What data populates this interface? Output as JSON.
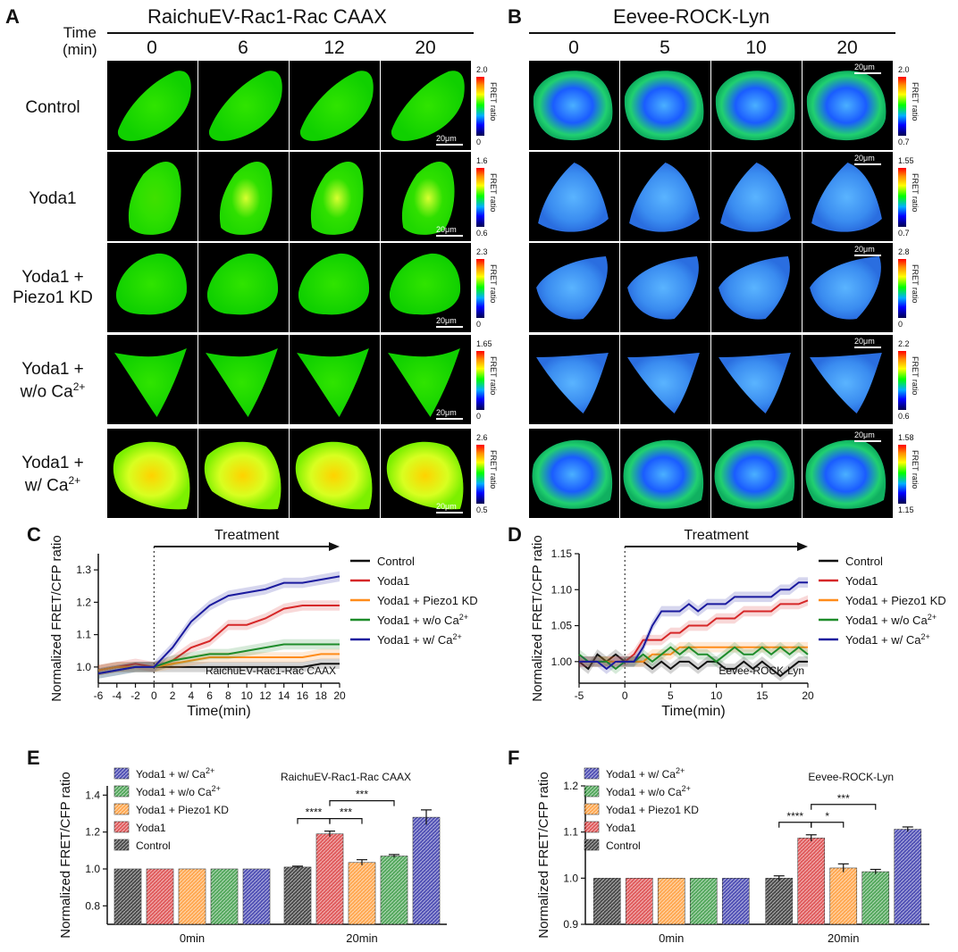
{
  "panel_labels": {
    "a": "A",
    "b": "B",
    "c": "C",
    "d": "D",
    "e": "E",
    "f": "F"
  },
  "panel_a": {
    "title": "RaichuEV-Rac1-Rac CAAX",
    "time_label_1": "Time",
    "time_label_2": "(min)",
    "times": [
      "0",
      "6",
      "12",
      "20"
    ],
    "rows": [
      {
        "label_1": "Control",
        "label_2": "",
        "cmax": "2.0",
        "cmin": "0",
        "hue": "green"
      },
      {
        "label_1": "Yoda1",
        "label_2": "",
        "cmax": "1.6",
        "cmin": "0.6",
        "hue": "green"
      },
      {
        "label_1": "Yoda1 +",
        "label_2": "Piezo1 KD",
        "cmax": "2.3",
        "cmin": "0",
        "hue": "green"
      },
      {
        "label_1": "Yoda1 +",
        "label_2": "w/o Ca",
        "cmax": "1.65",
        "cmin": "0",
        "hue": "green"
      },
      {
        "label_1": "Yoda1 +",
        "label_2": "w/ Ca",
        "cmax": "2.6",
        "cmin": "0.5",
        "hue": "yellow"
      }
    ],
    "sup": "2+",
    "scale": "20μm",
    "colorbar_label": "FRET ratio"
  },
  "panel_b": {
    "title": "Eevee-ROCK-Lyn",
    "times": [
      "0",
      "5",
      "10",
      "20"
    ],
    "rows": [
      {
        "cmax": "2.0",
        "cmin": "0.7"
      },
      {
        "cmax": "1.55",
        "cmin": "0.7"
      },
      {
        "cmax": "2.8",
        "cmin": "0"
      },
      {
        "cmax": "2.2",
        "cmin": "0.6"
      },
      {
        "cmax": "1.58",
        "cmin": "1.15"
      }
    ],
    "scale": "20μm",
    "colorbar_label": "FRET ratio"
  },
  "colors": {
    "control": "#111111",
    "yoda1": "#d62728",
    "piezo": "#ff8c1a",
    "woca": "#1e8c2a",
    "wca": "#1a1a9e"
  },
  "legend_line": [
    "Control",
    "Yoda1",
    "Yoda1 + Piezo1 KD",
    "Yoda1 + w/o Ca",
    "Yoda1 + w/ Ca"
  ],
  "legend_bar": [
    "Yoda1 + w/ Ca",
    "Yoda1 + w/o Ca",
    "Yoda1 + Piezo1 KD",
    "Yoda1",
    "Control"
  ],
  "chart_data": [
    {
      "id": "C",
      "type": "line",
      "ylabel": "Normalized FRET/CFP ratio",
      "xlabel": "Time(min)",
      "annotation": "Treatment",
      "inset": "RaichuEV-Rac1-Rac CAAX",
      "xlim": [
        -6,
        20
      ],
      "ylim": [
        0.95,
        1.35
      ],
      "xticks": [
        -6,
        -4,
        -2,
        0,
        2,
        4,
        6,
        8,
        10,
        12,
        14,
        16,
        18,
        20
      ],
      "yticks": [
        1.0,
        1.1,
        1.2,
        1.3
      ],
      "series": [
        {
          "name": "Control",
          "key": "control",
          "x": [
            -6,
            -4,
            -2,
            0,
            2,
            4,
            6,
            8,
            10,
            12,
            14,
            16,
            18,
            20
          ],
          "y": [
            0.99,
            1.0,
            1.0,
            1.0,
            1.0,
            1.0,
            1.0,
            1.0,
            1.0,
            1.0,
            1.0,
            1.0,
            1.01,
            1.01
          ]
        },
        {
          "name": "Yoda1",
          "key": "yoda1",
          "x": [
            -6,
            -4,
            -2,
            0,
            2,
            4,
            6,
            8,
            10,
            12,
            14,
            16,
            18,
            20
          ],
          "y": [
            0.99,
            1.0,
            1.01,
            1.0,
            1.02,
            1.06,
            1.08,
            1.13,
            1.13,
            1.15,
            1.18,
            1.19,
            1.19,
            1.19
          ]
        },
        {
          "name": "Yoda1 + Piezo1 KD",
          "key": "piezo",
          "x": [
            -6,
            -4,
            -2,
            0,
            2,
            4,
            6,
            8,
            10,
            12,
            14,
            16,
            18,
            20
          ],
          "y": [
            0.99,
            1.0,
            1.0,
            1.0,
            1.01,
            1.02,
            1.03,
            1.03,
            1.03,
            1.03,
            1.03,
            1.03,
            1.04,
            1.04
          ]
        },
        {
          "name": "Yoda1 + w/o Ca",
          "key": "woca",
          "x": [
            -6,
            -4,
            -2,
            0,
            2,
            4,
            6,
            8,
            10,
            12,
            14,
            16,
            18,
            20
          ],
          "y": [
            0.98,
            0.99,
            1.0,
            1.0,
            1.02,
            1.03,
            1.04,
            1.04,
            1.05,
            1.06,
            1.07,
            1.07,
            1.07,
            1.07
          ]
        },
        {
          "name": "Yoda1 + w/ Ca",
          "key": "wca",
          "x": [
            -6,
            -4,
            -2,
            0,
            2,
            4,
            6,
            8,
            10,
            12,
            14,
            16,
            18,
            20
          ],
          "y": [
            0.98,
            0.99,
            1.0,
            1.0,
            1.06,
            1.14,
            1.19,
            1.22,
            1.23,
            1.24,
            1.26,
            1.26,
            1.27,
            1.28
          ]
        }
      ]
    },
    {
      "id": "D",
      "type": "line",
      "ylabel": "Normalized FRET/CFP ratio",
      "xlabel": "Time(min)",
      "annotation": "Treatment",
      "inset": "Eevee-ROCK-Lyn",
      "xlim": [
        -5,
        20
      ],
      "ylim": [
        0.97,
        1.15
      ],
      "xticks": [
        -5,
        0,
        5,
        10,
        15,
        20
      ],
      "yticks": [
        1.0,
        1.05,
        1.1,
        1.15
      ],
      "series": [
        {
          "name": "Control",
          "key": "control",
          "x": [
            -5,
            -4,
            -3,
            -2,
            -1,
            0,
            1,
            2,
            3,
            4,
            5,
            6,
            7,
            8,
            9,
            10,
            11,
            12,
            13,
            14,
            15,
            16,
            17,
            18,
            19,
            20
          ],
          "y": [
            1.0,
            0.99,
            1.01,
            1.0,
            1.01,
            1.0,
            1.0,
            1.0,
            0.99,
            1.0,
            0.99,
            1.0,
            1.0,
            0.99,
            1.0,
            1.0,
            0.99,
            0.99,
            1.0,
            0.99,
            1.0,
            0.99,
            0.98,
            0.99,
            1.0,
            1.0
          ]
        },
        {
          "name": "Yoda1",
          "key": "yoda1",
          "x": [
            -5,
            -4,
            -3,
            -2,
            -1,
            0,
            1,
            2,
            3,
            4,
            5,
            6,
            7,
            8,
            9,
            10,
            11,
            12,
            13,
            14,
            15,
            16,
            17,
            18,
            19,
            20
          ],
          "y": [
            1.0,
            1.0,
            1.0,
            1.0,
            1.0,
            1.0,
            1.01,
            1.03,
            1.03,
            1.03,
            1.04,
            1.04,
            1.05,
            1.05,
            1.05,
            1.06,
            1.06,
            1.06,
            1.07,
            1.07,
            1.07,
            1.07,
            1.08,
            1.08,
            1.08,
            1.085
          ]
        },
        {
          "name": "Yoda1 + Piezo1 KD",
          "key": "piezo",
          "x": [
            -5,
            -4,
            -3,
            -2,
            -1,
            0,
            1,
            2,
            3,
            4,
            5,
            6,
            7,
            8,
            9,
            10,
            11,
            12,
            13,
            14,
            15,
            16,
            17,
            18,
            19,
            20
          ],
          "y": [
            1.0,
            1.0,
            1.0,
            1.0,
            1.0,
            1.0,
            1.0,
            1.0,
            1.01,
            1.01,
            1.01,
            1.02,
            1.02,
            1.02,
            1.02,
            1.02,
            1.02,
            1.02,
            1.02,
            1.02,
            1.02,
            1.02,
            1.02,
            1.02,
            1.02,
            1.02
          ]
        },
        {
          "name": "Yoda1 + w/o Ca",
          "key": "woca",
          "x": [
            -5,
            -4,
            -3,
            -2,
            -1,
            0,
            1,
            2,
            3,
            4,
            5,
            6,
            7,
            8,
            9,
            10,
            11,
            12,
            13,
            14,
            15,
            16,
            17,
            18,
            19,
            20
          ],
          "y": [
            1.01,
            1.0,
            1.0,
            1.0,
            0.99,
            1.0,
            1.0,
            1.01,
            1.0,
            1.01,
            1.02,
            1.01,
            1.02,
            1.01,
            1.01,
            1.0,
            1.01,
            1.02,
            1.01,
            1.01,
            1.02,
            1.01,
            1.02,
            1.01,
            1.02,
            1.01
          ]
        },
        {
          "name": "Yoda1 + w/ Ca",
          "key": "wca",
          "x": [
            -5,
            -4,
            -3,
            -2,
            -1,
            0,
            1,
            2,
            3,
            4,
            5,
            6,
            7,
            8,
            9,
            10,
            11,
            12,
            13,
            14,
            15,
            16,
            17,
            18,
            19,
            20
          ],
          "y": [
            1.0,
            1.0,
            1.0,
            0.99,
            1.0,
            1.0,
            1.0,
            1.02,
            1.05,
            1.07,
            1.07,
            1.07,
            1.08,
            1.07,
            1.08,
            1.08,
            1.08,
            1.09,
            1.09,
            1.09,
            1.09,
            1.09,
            1.1,
            1.1,
            1.11,
            1.11
          ]
        }
      ]
    },
    {
      "id": "E",
      "type": "bar",
      "ylabel": "Normalized FRET/CFP ratio",
      "inset": "RaichuEV-Rac1-Rac CAAX",
      "categories": [
        "0min",
        "20min"
      ],
      "ylim": [
        0.7,
        1.45
      ],
      "yticks": [
        0.8,
        1.0,
        1.2,
        1.4
      ],
      "series": [
        {
          "name": "Control",
          "key": "control",
          "values": [
            1.0,
            1.01
          ],
          "err": [
            0,
            0.005
          ]
        },
        {
          "name": "Yoda1",
          "key": "yoda1",
          "values": [
            1.0,
            1.19
          ],
          "err": [
            0,
            0.015
          ]
        },
        {
          "name": "Yoda1 + Piezo1 KD",
          "key": "piezo",
          "values": [
            1.0,
            1.035
          ],
          "err": [
            0,
            0.015
          ]
        },
        {
          "name": "Yoda1 + w/o Ca",
          "key": "woca",
          "values": [
            1.0,
            1.07
          ],
          "err": [
            0,
            0.008
          ]
        },
        {
          "name": "Yoda1 + w/ Ca",
          "key": "wca",
          "values": [
            1.0,
            1.28
          ],
          "err": [
            0,
            0.04
          ]
        }
      ],
      "significance": [
        {
          "from": 0,
          "to": 1,
          "label": "****",
          "level": 1
        },
        {
          "from": 1,
          "to": 2,
          "label": "***",
          "level": 1
        },
        {
          "from": 1,
          "to": 3,
          "label": "***",
          "level": 2
        }
      ]
    },
    {
      "id": "F",
      "type": "bar",
      "ylabel": "Normalized FRET/CFP ratio",
      "inset": "Eevee-ROCK-Lyn",
      "categories": [
        "0min",
        "20min"
      ],
      "ylim": [
        0.9,
        1.2
      ],
      "yticks": [
        0.9,
        1.0,
        1.1,
        1.2
      ],
      "series": [
        {
          "name": "Control",
          "key": "control",
          "values": [
            1.0,
            1.0
          ],
          "err": [
            0,
            0.005
          ]
        },
        {
          "name": "Yoda1",
          "key": "yoda1",
          "values": [
            1.0,
            1.087
          ],
          "err": [
            0,
            0.007
          ]
        },
        {
          "name": "Yoda1 + Piezo1 KD",
          "key": "piezo",
          "values": [
            1.0,
            1.022
          ],
          "err": [
            0,
            0.009
          ]
        },
        {
          "name": "Yoda1 + w/o Ca",
          "key": "woca",
          "values": [
            1.0,
            1.014
          ],
          "err": [
            0,
            0.005
          ]
        },
        {
          "name": "Yoda1 + w/ Ca",
          "key": "wca",
          "values": [
            1.0,
            1.106
          ],
          "err": [
            0,
            0.005
          ]
        }
      ],
      "significance": [
        {
          "from": 0,
          "to": 1,
          "label": "****",
          "level": 1
        },
        {
          "from": 1,
          "to": 2,
          "label": "*",
          "level": 1
        },
        {
          "from": 1,
          "to": 3,
          "label": "***",
          "level": 2
        }
      ]
    }
  ]
}
